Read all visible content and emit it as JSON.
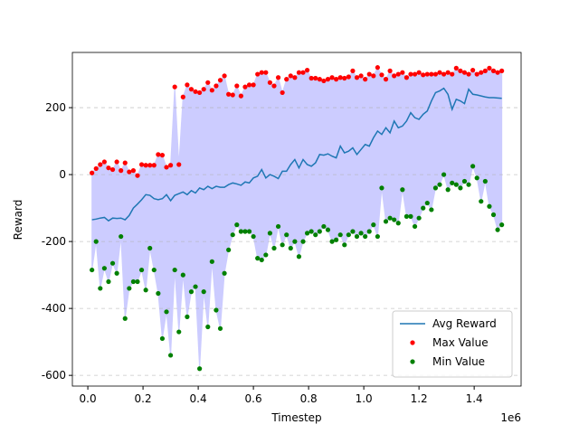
{
  "chart_data": {
    "type": "line",
    "xlabel": "Timestep",
    "ylabel": "Reward",
    "x_offset_label": "1e6",
    "xlim": [
      -0.056,
      1.57
    ],
    "ylim": [
      -632,
      365
    ],
    "xticks": [
      {
        "value": 0,
        "label": "0.0"
      },
      {
        "value": 0.2,
        "label": "0.2"
      },
      {
        "value": 0.4,
        "label": "0.4"
      },
      {
        "value": 0.6,
        "label": "0.6"
      },
      {
        "value": 0.8,
        "label": "0.8"
      },
      {
        "value": 1.0,
        "label": "1.0"
      },
      {
        "value": 1.2,
        "label": "1.2"
      },
      {
        "value": 1.4,
        "label": "1.4"
      }
    ],
    "yticks": [
      -600,
      -400,
      -200,
      0,
      200
    ],
    "grid": true,
    "legend": "lower right",
    "fill_color": "#ccccff",
    "x": [
      0.015,
      0.03,
      0.045,
      0.06,
      0.075,
      0.09,
      0.105,
      0.12,
      0.135,
      0.15,
      0.165,
      0.18,
      0.195,
      0.21,
      0.225,
      0.24,
      0.255,
      0.27,
      0.285,
      0.3,
      0.315,
      0.33,
      0.345,
      0.36,
      0.375,
      0.39,
      0.405,
      0.42,
      0.435,
      0.45,
      0.465,
      0.48,
      0.495,
      0.51,
      0.525,
      0.54,
      0.555,
      0.57,
      0.585,
      0.6,
      0.615,
      0.63,
      0.645,
      0.66,
      0.675,
      0.69,
      0.705,
      0.72,
      0.735,
      0.75,
      0.765,
      0.78,
      0.795,
      0.81,
      0.825,
      0.84,
      0.855,
      0.87,
      0.885,
      0.9,
      0.915,
      0.93,
      0.945,
      0.96,
      0.975,
      0.99,
      1.005,
      1.02,
      1.035,
      1.05,
      1.065,
      1.08,
      1.095,
      1.11,
      1.125,
      1.14,
      1.155,
      1.17,
      1.185,
      1.2,
      1.215,
      1.23,
      1.245,
      1.26,
      1.275,
      1.29,
      1.305,
      1.32,
      1.335,
      1.35,
      1.365,
      1.38,
      1.395,
      1.41,
      1.425,
      1.44,
      1.455,
      1.47,
      1.485,
      1.5
    ],
    "series": [
      {
        "name": "Avg Reward",
        "color": "#1f77b4",
        "style": "line",
        "values": [
          -135,
          -133,
          -130,
          -128,
          -138,
          -130,
          -131,
          -130,
          -135,
          -122,
          -100,
          -88,
          -75,
          -60,
          -62,
          -72,
          -75,
          -72,
          -60,
          -78,
          -62,
          -57,
          -52,
          -60,
          -48,
          -55,
          -40,
          -45,
          -35,
          -42,
          -35,
          -38,
          -38,
          -30,
          -25,
          -28,
          -32,
          -22,
          -25,
          -10,
          -5,
          15,
          -10,
          0,
          -5,
          -12,
          10,
          10,
          30,
          45,
          20,
          45,
          30,
          25,
          35,
          60,
          58,
          62,
          55,
          50,
          85,
          65,
          70,
          80,
          60,
          75,
          90,
          85,
          110,
          130,
          120,
          140,
          125,
          160,
          140,
          145,
          160,
          185,
          170,
          165,
          180,
          190,
          220,
          245,
          250,
          258,
          240,
          195,
          225,
          220,
          212,
          255,
          240,
          238,
          235,
          232,
          230,
          230,
          229,
          228
        ]
      },
      {
        "name": "Max Value",
        "color": "#ff0000",
        "style": "scatter",
        "values": [
          5,
          18,
          30,
          38,
          20,
          15,
          38,
          12,
          35,
          8,
          12,
          -3,
          30,
          28,
          28,
          28,
          60,
          58,
          22,
          28,
          262,
          30,
          232,
          268,
          255,
          248,
          245,
          255,
          275,
          252,
          265,
          282,
          295,
          240,
          238,
          265,
          235,
          262,
          268,
          268,
          300,
          305,
          305,
          275,
          265,
          290,
          245,
          285,
          295,
          290,
          305,
          305,
          312,
          288,
          288,
          285,
          280,
          285,
          290,
          285,
          290,
          288,
          292,
          310,
          290,
          295,
          285,
          300,
          295,
          320,
          298,
          285,
          310,
          295,
          300,
          305,
          290,
          300,
          300,
          305,
          298,
          300,
          300,
          300,
          305,
          300,
          305,
          300,
          318,
          310,
          305,
          300,
          312,
          300,
          305,
          310,
          318,
          310,
          305,
          310
        ]
      },
      {
        "name": "Min Value",
        "color": "#008000",
        "style": "scatter",
        "values": [
          -285,
          -200,
          -340,
          -280,
          -320,
          -265,
          -295,
          -185,
          -430,
          -340,
          -320,
          -320,
          -285,
          -345,
          -220,
          -285,
          -355,
          -490,
          -410,
          -540,
          -285,
          -470,
          -300,
          -425,
          -350,
          -335,
          -580,
          -350,
          -455,
          -260,
          -405,
          -460,
          -295,
          -225,
          -180,
          -150,
          -170,
          -170,
          -170,
          -185,
          -250,
          -255,
          -240,
          -175,
          -220,
          -155,
          -210,
          -180,
          -220,
          -200,
          -245,
          -200,
          -175,
          -170,
          -180,
          -170,
          -155,
          -165,
          -200,
          -195,
          -180,
          -210,
          -180,
          -170,
          -185,
          -175,
          -185,
          -170,
          -150,
          -185,
          -40,
          -140,
          -130,
          -135,
          -145,
          -45,
          -125,
          -125,
          -155,
          -130,
          -100,
          -85,
          -105,
          -40,
          -30,
          0,
          -45,
          -25,
          -30,
          -40,
          -20,
          -30,
          25,
          -10,
          -80,
          -20,
          -95,
          -120,
          -165,
          -150
        ]
      }
    ]
  }
}
